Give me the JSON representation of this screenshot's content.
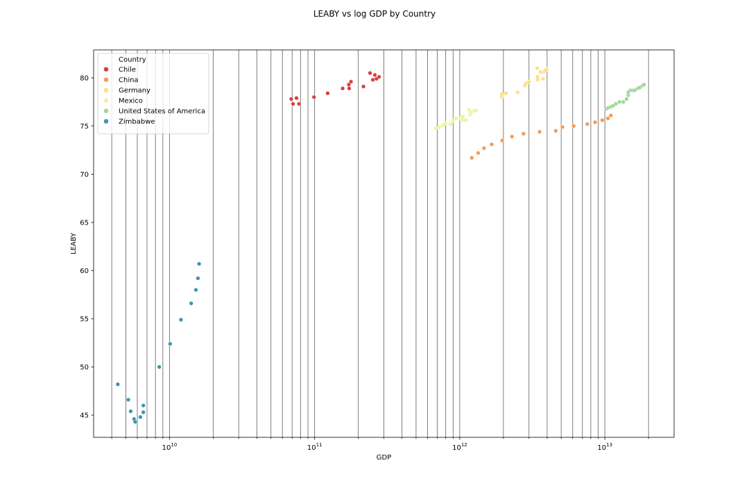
{
  "chart_data": {
    "type": "scatter",
    "title": "LEABY vs log GDP by Country",
    "xlabel": "GDP",
    "ylabel": "LEABY",
    "xscale": "log",
    "xlim": [
      3000000000.0,
      30000000000000.0
    ],
    "ylim": [
      42.7,
      82.9
    ],
    "xticks": [
      {
        "value": 10000000000.0,
        "base": "10",
        "exp": "10"
      },
      {
        "value": 100000000000.0,
        "base": "10",
        "exp": "11"
      },
      {
        "value": 1000000000000.0,
        "base": "10",
        "exp": "12"
      },
      {
        "value": 10000000000000.0,
        "base": "10",
        "exp": "13"
      }
    ],
    "yticks": [
      45,
      50,
      55,
      60,
      65,
      70,
      75,
      80
    ],
    "grid": "vertical-minor",
    "legend": {
      "title": "Country",
      "position": "upper-left"
    },
    "series": [
      {
        "name": "Chile",
        "color": "#d7403d",
        "points": [
          {
            "x": 69000000000.0,
            "y": 77.8
          },
          {
            "x": 71000000000.0,
            "y": 77.3
          },
          {
            "x": 75000000000.0,
            "y": 77.9
          },
          {
            "x": 78000000000.0,
            "y": 77.3
          },
          {
            "x": 99000000000.0,
            "y": 78.0
          },
          {
            "x": 123000000000.0,
            "y": 78.4
          },
          {
            "x": 156000000000.0,
            "y": 78.9
          },
          {
            "x": 172000000000.0,
            "y": 79.3
          },
          {
            "x": 178000000000.0,
            "y": 79.6
          },
          {
            "x": 173000000000.0,
            "y": 78.9
          },
          {
            "x": 217000000000.0,
            "y": 79.1
          },
          {
            "x": 241000000000.0,
            "y": 80.5
          },
          {
            "x": 260000000000.0,
            "y": 80.3
          },
          {
            "x": 252000000000.0,
            "y": 79.8
          },
          {
            "x": 267000000000.0,
            "y": 79.9
          },
          {
            "x": 278000000000.0,
            "y": 80.1
          }
        ]
      },
      {
        "name": "China",
        "color": "#f59c56",
        "points": [
          {
            "x": 1210000000000.0,
            "y": 71.7
          },
          {
            "x": 1340000000000.0,
            "y": 72.2
          },
          {
            "x": 1470000000000.0,
            "y": 72.7
          },
          {
            "x": 1660000000000.0,
            "y": 73.1
          },
          {
            "x": 1960000000000.0,
            "y": 73.5
          },
          {
            "x": 2290000000000.0,
            "y": 73.9
          },
          {
            "x": 2750000000000.0,
            "y": 74.2
          },
          {
            "x": 3550000000000.0,
            "y": 74.4
          },
          {
            "x": 4590000000000.0,
            "y": 74.5
          },
          {
            "x": 5100000000000.0,
            "y": 74.9
          },
          {
            "x": 6100000000000.0,
            "y": 75.0
          },
          {
            "x": 7570000000000.0,
            "y": 75.2
          },
          {
            "x": 8560000000000.0,
            "y": 75.4
          },
          {
            "x": 9600000000000.0,
            "y": 75.6
          },
          {
            "x": 10500000000000.0,
            "y": 75.8
          },
          {
            "x": 11000000000000.0,
            "y": 76.1
          }
        ]
      },
      {
        "name": "Germany",
        "color": "#fddf8a",
        "points": [
          {
            "x": 1950000000000.0,
            "y": 78.0
          },
          {
            "x": 1950000000000.0,
            "y": 78.3
          },
          {
            "x": 2080000000000.0,
            "y": 78.4
          },
          {
            "x": 2500000000000.0,
            "y": 78.5
          },
          {
            "x": 2810000000000.0,
            "y": 79.2
          },
          {
            "x": 2860000000000.0,
            "y": 79.4
          },
          {
            "x": 3000000000000.0,
            "y": 79.6
          },
          {
            "x": 3440000000000.0,
            "y": 80.1
          },
          {
            "x": 3440000000000.0,
            "y": 79.8
          },
          {
            "x": 3750000000000.0,
            "y": 80.6
          },
          {
            "x": 3420000000000.0,
            "y": 81.0
          },
          {
            "x": 3600000000000.0,
            "y": 80.6
          },
          {
            "x": 3860000000000.0,
            "y": 80.7
          },
          {
            "x": 3970000000000.0,
            "y": 80.9
          },
          {
            "x": 3750000000000.0,
            "y": 79.9
          },
          {
            "x": 3890000000000.0,
            "y": 80.8
          }
        ]
      },
      {
        "name": "Mexico",
        "color": "#eef4a0",
        "points": [
          {
            "x": 684000000000.0,
            "y": 74.8
          },
          {
            "x": 725000000000.0,
            "y": 74.9
          },
          {
            "x": 770000000000.0,
            "y": 75.1
          },
          {
            "x": 797000000000.0,
            "y": 75.3
          },
          {
            "x": 864000000000.0,
            "y": 75.2
          },
          {
            "x": 902000000000.0,
            "y": 75.6
          },
          {
            "x": 944000000000.0,
            "y": 75.8
          },
          {
            "x": 1010000000000.0,
            "y": 75.8
          },
          {
            "x": 1050000000000.0,
            "y": 76.0
          },
          {
            "x": 1050000000000.0,
            "y": 75.6
          },
          {
            "x": 1100000000000.0,
            "y": 75.6
          },
          {
            "x": 1160000000000.0,
            "y": 76.7
          },
          {
            "x": 1180000000000.0,
            "y": 76.2
          },
          {
            "x": 1200000000000.0,
            "y": 76.4
          },
          {
            "x": 1260000000000.0,
            "y": 76.6
          },
          {
            "x": 1300000000000.0,
            "y": 76.6
          }
        ]
      },
      {
        "name": "United States of America",
        "color": "#9ed89b",
        "points": [
          {
            "x": 10300000000000.0,
            "y": 76.8
          },
          {
            "x": 10600000000000.0,
            "y": 76.9
          },
          {
            "x": 11000000000000.0,
            "y": 77.0
          },
          {
            "x": 11400000000000.0,
            "y": 77.1
          },
          {
            "x": 11900000000000.0,
            "y": 77.3
          },
          {
            "x": 12600000000000.0,
            "y": 77.5
          },
          {
            "x": 13400000000000.0,
            "y": 77.5
          },
          {
            "x": 14100000000000.0,
            "y": 77.8
          },
          {
            "x": 14500000000000.0,
            "y": 78.2
          },
          {
            "x": 14500000000000.0,
            "y": 78.5
          },
          {
            "x": 15000000000000.0,
            "y": 78.7
          },
          {
            "x": 15500000000000.0,
            "y": 78.7
          },
          {
            "x": 16000000000000.0,
            "y": 78.7
          },
          {
            "x": 16800000000000.0,
            "y": 78.9
          },
          {
            "x": 17400000000000.0,
            "y": 79.0
          },
          {
            "x": 18200000000000.0,
            "y": 79.2
          },
          {
            "x": 18600000000000.0,
            "y": 79.3
          }
        ]
      },
      {
        "name": "Zimbabwe",
        "color": "#3c96b4",
        "points": [
          {
            "x": 4400000000.0,
            "y": 48.2
          },
          {
            "x": 5200000000.0,
            "y": 46.6
          },
          {
            "x": 5400000000.0,
            "y": 45.4
          },
          {
            "x": 5700000000.0,
            "y": 44.6
          },
          {
            "x": 5800000000.0,
            "y": 44.3
          },
          {
            "x": 6300000000.0,
            "y": 44.8
          },
          {
            "x": 6600000000.0,
            "y": 45.3
          },
          {
            "x": 6600000000.0,
            "y": 46.0
          },
          {
            "x": 8500000000.0,
            "y": 50.0
          },
          {
            "x": 10100000000.0,
            "y": 52.4
          },
          {
            "x": 12000000000.0,
            "y": 54.9
          },
          {
            "x": 14100000000.0,
            "y": 56.6
          },
          {
            "x": 15200000000.0,
            "y": 58.0
          },
          {
            "x": 15700000000.0,
            "y": 59.2
          },
          {
            "x": 16000000000.0,
            "y": 60.7
          }
        ]
      }
    ]
  }
}
